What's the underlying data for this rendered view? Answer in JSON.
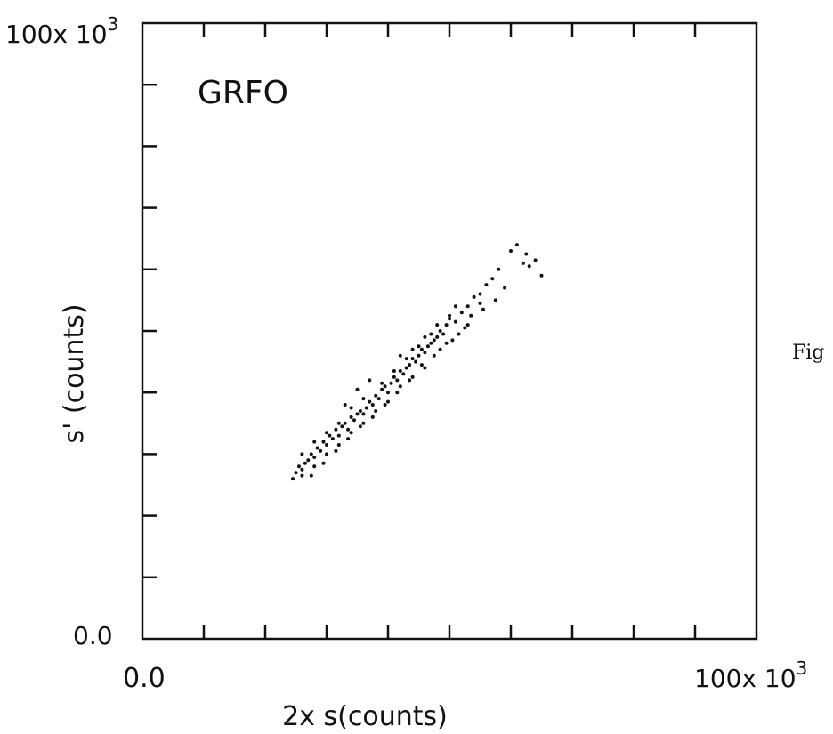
{
  "side_text": "Fig",
  "chart_data": {
    "type": "scatter",
    "annotation": "GRFO",
    "xlabel": "2x s(counts)",
    "ylabel": "s' (counts)",
    "xlim": [
      0,
      100000
    ],
    "ylim": [
      0,
      100000
    ],
    "x_tick_labels": [
      "0.0",
      "100x 10",
      "3"
    ],
    "y_tick_labels": [
      "0.0",
      "100x 10",
      "3"
    ],
    "x_ticks": [
      0,
      10000,
      20000,
      30000,
      40000,
      50000,
      60000,
      70000,
      80000,
      90000,
      100000
    ],
    "y_ticks": [
      0,
      10000,
      20000,
      30000,
      40000,
      50000,
      60000,
      70000,
      80000,
      90000,
      100000
    ],
    "grid": false,
    "points": [
      [
        24500,
        26000
      ],
      [
        25000,
        27000
      ],
      [
        25500,
        28000
      ],
      [
        26000,
        27500
      ],
      [
        26500,
        28500
      ],
      [
        27000,
        29000
      ],
      [
        27500,
        30000
      ],
      [
        28000,
        29500
      ],
      [
        28500,
        31000
      ],
      [
        29000,
        30500
      ],
      [
        29500,
        32000
      ],
      [
        30000,
        31500
      ],
      [
        30500,
        33000
      ],
      [
        31000,
        32500
      ],
      [
        31500,
        34000
      ],
      [
        32000,
        33000
      ],
      [
        32500,
        34500
      ],
      [
        33000,
        35000
      ],
      [
        33500,
        34000
      ],
      [
        34000,
        36000
      ],
      [
        34500,
        35500
      ],
      [
        35000,
        36500
      ],
      [
        35500,
        37000
      ],
      [
        36000,
        36500
      ],
      [
        36500,
        37500
      ],
      [
        37000,
        38500
      ],
      [
        37500,
        38000
      ],
      [
        38000,
        39500
      ],
      [
        38500,
        39000
      ],
      [
        39000,
        40500
      ],
      [
        39500,
        41000
      ],
      [
        40000,
        40000
      ],
      [
        40500,
        41500
      ],
      [
        41000,
        42500
      ],
      [
        41500,
        42000
      ],
      [
        42000,
        43500
      ],
      [
        42500,
        43000
      ],
      [
        43000,
        44000
      ],
      [
        43500,
        44500
      ],
      [
        44000,
        45500
      ],
      [
        44500,
        45000
      ],
      [
        45000,
        46000
      ],
      [
        45500,
        47000
      ],
      [
        46000,
        46500
      ],
      [
        46500,
        47500
      ],
      [
        47000,
        48000
      ],
      [
        47500,
        48500
      ],
      [
        48000,
        49000
      ],
      [
        48500,
        50000
      ],
      [
        49000,
        49500
      ],
      [
        49500,
        51000
      ],
      [
        50000,
        52000
      ],
      [
        51000,
        51500
      ],
      [
        52000,
        53000
      ],
      [
        53000,
        54000
      ],
      [
        53500,
        52500
      ],
      [
        54000,
        55500
      ],
      [
        55000,
        56000
      ],
      [
        56000,
        57500
      ],
      [
        57000,
        58500
      ],
      [
        58000,
        60000
      ],
      [
        60000,
        63000
      ],
      [
        61000,
        64000
      ],
      [
        62000,
        61000
      ],
      [
        63000,
        60500
      ],
      [
        64000,
        61500
      ],
      [
        65000,
        59000
      ],
      [
        62500,
        62500
      ],
      [
        59000,
        57000
      ],
      [
        57500,
        55000
      ],
      [
        55500,
        53500
      ],
      [
        52500,
        50500
      ],
      [
        50500,
        48500
      ],
      [
        48500,
        47000
      ],
      [
        46000,
        44000
      ],
      [
        44000,
        42500
      ],
      [
        42000,
        41000
      ],
      [
        40000,
        38500
      ],
      [
        38000,
        37000
      ],
      [
        36000,
        35000
      ],
      [
        34000,
        33500
      ],
      [
        32000,
        31500
      ],
      [
        30000,
        30000
      ],
      [
        28000,
        28000
      ],
      [
        26000,
        26500
      ],
      [
        27500,
        26500
      ],
      [
        29500,
        28500
      ],
      [
        31500,
        30500
      ],
      [
        33500,
        32500
      ],
      [
        35500,
        34500
      ],
      [
        37500,
        36000
      ],
      [
        39500,
        38000
      ],
      [
        41500,
        40000
      ],
      [
        43500,
        42000
      ],
      [
        45500,
        44500
      ],
      [
        47500,
        46000
      ],
      [
        49500,
        48000
      ],
      [
        51500,
        49500
      ],
      [
        53000,
        51000
      ],
      [
        55000,
        54500
      ],
      [
        39000,
        41500
      ],
      [
        41000,
        43500
      ],
      [
        43000,
        45500
      ],
      [
        45000,
        47500
      ],
      [
        47000,
        49500
      ],
      [
        36000,
        39000
      ],
      [
        34000,
        37500
      ],
      [
        32000,
        35000
      ],
      [
        30000,
        33500
      ],
      [
        28000,
        32000
      ],
      [
        26000,
        30000
      ],
      [
        33000,
        38000
      ],
      [
        35000,
        40500
      ],
      [
        37000,
        42000
      ],
      [
        42000,
        46000
      ],
      [
        44000,
        47000
      ],
      [
        46000,
        49000
      ],
      [
        48000,
        51000
      ],
      [
        50000,
        52500
      ],
      [
        51000,
        54000
      ]
    ]
  }
}
